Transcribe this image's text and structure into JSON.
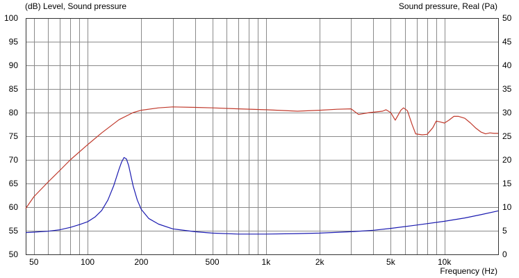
{
  "chart_data": {
    "type": "line",
    "left_axis_title": "(dB)  Level, Sound pressure",
    "right_axis_title": "Sound pressure, Real  (Pa)",
    "x_axis_title": "Frequency  (Hz)",
    "x_scale": "log",
    "xlim": [
      45,
      20000
    ],
    "ylim_left": [
      50,
      100
    ],
    "ylim_right": [
      0,
      50
    ],
    "y_left_ticks": [
      100,
      95,
      90,
      85,
      80,
      75,
      70,
      65,
      60,
      55,
      50
    ],
    "y_right_ticks": [
      50,
      45,
      40,
      35,
      30,
      25,
      20,
      15,
      10,
      5,
      0
    ],
    "x_tick_labels": [
      {
        "value": 50,
        "label": "50"
      },
      {
        "value": 100,
        "label": "100"
      },
      {
        "value": 200,
        "label": "200"
      },
      {
        "value": 500,
        "label": "500"
      },
      {
        "value": 1000,
        "label": "1k"
      },
      {
        "value": 2000,
        "label": "2k"
      },
      {
        "value": 5000,
        "label": "5k"
      },
      {
        "value": 10000,
        "label": "10k"
      }
    ],
    "x_gridlines": [
      50,
      60,
      70,
      80,
      90,
      100,
      200,
      300,
      400,
      500,
      600,
      700,
      800,
      900,
      1000,
      2000,
      3000,
      4000,
      5000,
      6000,
      7000,
      8000,
      9000,
      10000,
      20000
    ],
    "grid": true,
    "series": [
      {
        "axis": "left",
        "color": "#c0392b",
        "x": [
          45,
          50,
          60,
          70,
          80,
          100,
          120,
          150,
          180,
          200,
          250,
          300,
          400,
          500,
          700,
          1000,
          1500,
          2000,
          2500,
          3000,
          3300,
          3800,
          4500,
          4700,
          5000,
          5300,
          5700,
          5900,
          6200,
          6600,
          6900,
          7500,
          8000,
          8600,
          9000,
          9500,
          10000,
          10600,
          11300,
          12000,
          13000,
          14000,
          15000,
          16000,
          17000,
          18000,
          19000,
          20000
        ],
        "y": [
          59.7,
          62.2,
          65.3,
          67.8,
          70.0,
          73.2,
          75.7,
          78.5,
          80.0,
          80.5,
          81.0,
          81.2,
          81.1,
          81.0,
          80.8,
          80.6,
          80.3,
          80.5,
          80.7,
          80.8,
          79.6,
          80.0,
          80.3,
          80.6,
          80.0,
          78.4,
          80.5,
          81.0,
          80.4,
          77.4,
          75.5,
          75.3,
          75.4,
          76.8,
          78.2,
          78.0,
          77.8,
          78.4,
          79.2,
          79.2,
          78.8,
          77.8,
          76.7,
          75.9,
          75.5,
          75.7,
          75.6,
          75.6
        ]
      },
      {
        "axis": "right",
        "color": "#1a1ab0",
        "x": [
          45,
          50,
          60,
          70,
          80,
          90,
          100,
          110,
          120,
          130,
          140,
          150,
          155,
          160,
          165,
          170,
          180,
          190,
          200,
          220,
          250,
          300,
          400,
          500,
          700,
          1000,
          1500,
          2000,
          3000,
          4000,
          5000,
          7000,
          10000,
          13000,
          16000,
          20000
        ],
        "y": [
          4.6,
          4.7,
          4.9,
          5.2,
          5.7,
          6.3,
          6.9,
          7.9,
          9.3,
          11.5,
          14.5,
          18.0,
          19.5,
          20.5,
          20.2,
          18.8,
          14.5,
          11.5,
          9.5,
          7.6,
          6.4,
          5.4,
          4.8,
          4.5,
          4.3,
          4.3,
          4.4,
          4.5,
          4.8,
          5.1,
          5.5,
          6.2,
          7.0,
          7.7,
          8.4,
          9.2
        ]
      }
    ]
  }
}
